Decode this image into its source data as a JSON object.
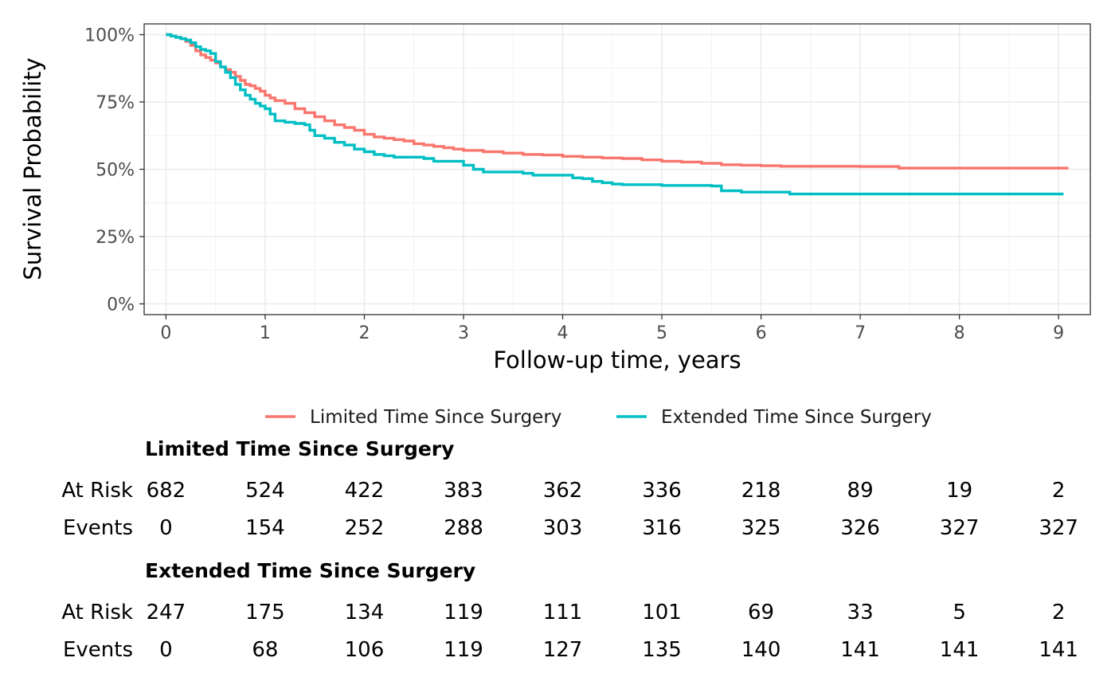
{
  "chart_data": {
    "type": "line",
    "xlabel": "Follow-up time, years",
    "ylabel": "Survival Probability",
    "xlim": [
      -0.22,
      9.32
    ],
    "ylim": [
      -0.04,
      1.04
    ],
    "x_ticks": [
      0,
      1,
      2,
      3,
      4,
      5,
      6,
      7,
      8,
      9
    ],
    "y_ticks": [
      0,
      0.25,
      0.5,
      0.75,
      1.0
    ],
    "y_tick_labels": [
      "0%",
      "25%",
      "50%",
      "75%",
      "100%"
    ],
    "grid": true,
    "legend_position": "bottom",
    "series": [
      {
        "name": "Limited Time Since Surgery",
        "color": "#F8766D",
        "points": [
          [
            0,
            1.0
          ],
          [
            0.05,
            0.995
          ],
          [
            0.1,
            0.99
          ],
          [
            0.15,
            0.985
          ],
          [
            0.2,
            0.975
          ],
          [
            0.25,
            0.96
          ],
          [
            0.3,
            0.94
          ],
          [
            0.35,
            0.925
          ],
          [
            0.4,
            0.915
          ],
          [
            0.45,
            0.905
          ],
          [
            0.5,
            0.895
          ],
          [
            0.55,
            0.88
          ],
          [
            0.6,
            0.87
          ],
          [
            0.65,
            0.86
          ],
          [
            0.7,
            0.845
          ],
          [
            0.75,
            0.83
          ],
          [
            0.8,
            0.815
          ],
          [
            0.85,
            0.81
          ],
          [
            0.9,
            0.8
          ],
          [
            0.95,
            0.79
          ],
          [
            1.0,
            0.775
          ],
          [
            1.05,
            0.765
          ],
          [
            1.1,
            0.755
          ],
          [
            1.2,
            0.745
          ],
          [
            1.3,
            0.725
          ],
          [
            1.4,
            0.71
          ],
          [
            1.5,
            0.695
          ],
          [
            1.6,
            0.68
          ],
          [
            1.7,
            0.665
          ],
          [
            1.8,
            0.655
          ],
          [
            1.9,
            0.645
          ],
          [
            2.0,
            0.63
          ],
          [
            2.1,
            0.62
          ],
          [
            2.2,
            0.615
          ],
          [
            2.3,
            0.61
          ],
          [
            2.4,
            0.605
          ],
          [
            2.5,
            0.595
          ],
          [
            2.6,
            0.59
          ],
          [
            2.7,
            0.585
          ],
          [
            2.8,
            0.58
          ],
          [
            2.9,
            0.575
          ],
          [
            3.0,
            0.57
          ],
          [
            3.2,
            0.565
          ],
          [
            3.4,
            0.56
          ],
          [
            3.6,
            0.555
          ],
          [
            3.8,
            0.553
          ],
          [
            4.0,
            0.548
          ],
          [
            4.2,
            0.545
          ],
          [
            4.4,
            0.542
          ],
          [
            4.6,
            0.54
          ],
          [
            4.8,
            0.535
          ],
          [
            5.0,
            0.53
          ],
          [
            5.2,
            0.527
          ],
          [
            5.4,
            0.522
          ],
          [
            5.6,
            0.517
          ],
          [
            5.8,
            0.515
          ],
          [
            6.0,
            0.513
          ],
          [
            6.2,
            0.511
          ],
          [
            6.4,
            0.511
          ],
          [
            6.8,
            0.511
          ],
          [
            7.0,
            0.51
          ],
          [
            7.38,
            0.51
          ],
          [
            7.39,
            0.504
          ],
          [
            8.0,
            0.504
          ],
          [
            9.1,
            0.504
          ]
        ]
      },
      {
        "name": "Extended Time Since Surgery",
        "color": "#00BFC4",
        "points": [
          [
            0,
            1.0
          ],
          [
            0.05,
            0.995
          ],
          [
            0.1,
            0.99
          ],
          [
            0.15,
            0.985
          ],
          [
            0.2,
            0.98
          ],
          [
            0.25,
            0.97
          ],
          [
            0.3,
            0.955
          ],
          [
            0.35,
            0.945
          ],
          [
            0.4,
            0.94
          ],
          [
            0.45,
            0.93
          ],
          [
            0.5,
            0.9
          ],
          [
            0.55,
            0.88
          ],
          [
            0.6,
            0.86
          ],
          [
            0.65,
            0.84
          ],
          [
            0.7,
            0.815
          ],
          [
            0.75,
            0.795
          ],
          [
            0.8,
            0.775
          ],
          [
            0.85,
            0.76
          ],
          [
            0.9,
            0.745
          ],
          [
            0.95,
            0.735
          ],
          [
            1.0,
            0.725
          ],
          [
            1.05,
            0.705
          ],
          [
            1.1,
            0.68
          ],
          [
            1.2,
            0.675
          ],
          [
            1.3,
            0.67
          ],
          [
            1.4,
            0.665
          ],
          [
            1.45,
            0.645
          ],
          [
            1.5,
            0.625
          ],
          [
            1.6,
            0.615
          ],
          [
            1.7,
            0.6
          ],
          [
            1.8,
            0.59
          ],
          [
            1.9,
            0.575
          ],
          [
            2.0,
            0.565
          ],
          [
            2.1,
            0.555
          ],
          [
            2.2,
            0.55
          ],
          [
            2.3,
            0.545
          ],
          [
            2.4,
            0.545
          ],
          [
            2.6,
            0.54
          ],
          [
            2.7,
            0.53
          ],
          [
            2.9,
            0.53
          ],
          [
            3.0,
            0.515
          ],
          [
            3.1,
            0.5
          ],
          [
            3.2,
            0.49
          ],
          [
            3.4,
            0.49
          ],
          [
            3.6,
            0.485
          ],
          [
            3.7,
            0.478
          ],
          [
            4.0,
            0.478
          ],
          [
            4.1,
            0.468
          ],
          [
            4.2,
            0.465
          ],
          [
            4.25,
            0.465
          ],
          [
            4.3,
            0.455
          ],
          [
            4.4,
            0.45
          ],
          [
            4.5,
            0.445
          ],
          [
            4.6,
            0.443
          ],
          [
            5.0,
            0.44
          ],
          [
            5.5,
            0.438
          ],
          [
            5.6,
            0.42
          ],
          [
            5.8,
            0.415
          ],
          [
            6.2,
            0.415
          ],
          [
            6.28,
            0.415
          ],
          [
            6.29,
            0.408
          ],
          [
            7.0,
            0.408
          ],
          [
            9.05,
            0.408
          ]
        ]
      }
    ]
  },
  "risk_table": {
    "time_points": [
      0,
      1,
      2,
      3,
      4,
      5,
      6,
      7,
      8,
      9
    ],
    "row_labels": {
      "at_risk": "At Risk",
      "events": "Events"
    },
    "groups": [
      {
        "title": "Limited Time Since Surgery",
        "at_risk": [
          "682",
          "524",
          "422",
          "383",
          "362",
          "336",
          "218",
          "89",
          "19",
          "2"
        ],
        "events": [
          "0",
          "154",
          "252",
          "288",
          "303",
          "316",
          "325",
          "326",
          "327",
          "327"
        ]
      },
      {
        "title": "Extended Time Since Surgery",
        "at_risk": [
          "247",
          "175",
          "134",
          "119",
          "111",
          "101",
          "69",
          "33",
          "5",
          "2"
        ],
        "events": [
          "0",
          "68",
          "106",
          "119",
          "127",
          "135",
          "140",
          "141",
          "141",
          "141"
        ]
      }
    ]
  }
}
